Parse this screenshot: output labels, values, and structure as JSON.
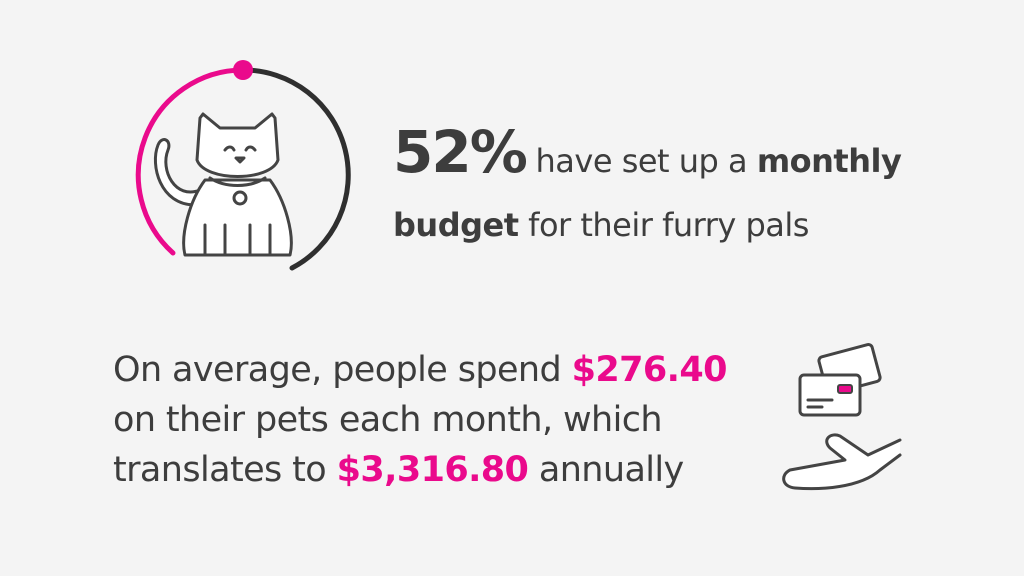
{
  "stat_budget": {
    "figure": "52%",
    "text_1": "have set up a",
    "emphasis": "monthly",
    "emphasis_2": "budget",
    "text_2": "for their furry pals"
  },
  "stat_spend": {
    "line_1": "On average, people spend",
    "monthly_amount": "$276.40",
    "line_2": "on their pets each month, which",
    "line_3": "translates to",
    "annual_amount": "$3,316.80",
    "line_3_end": "annually"
  }
}
